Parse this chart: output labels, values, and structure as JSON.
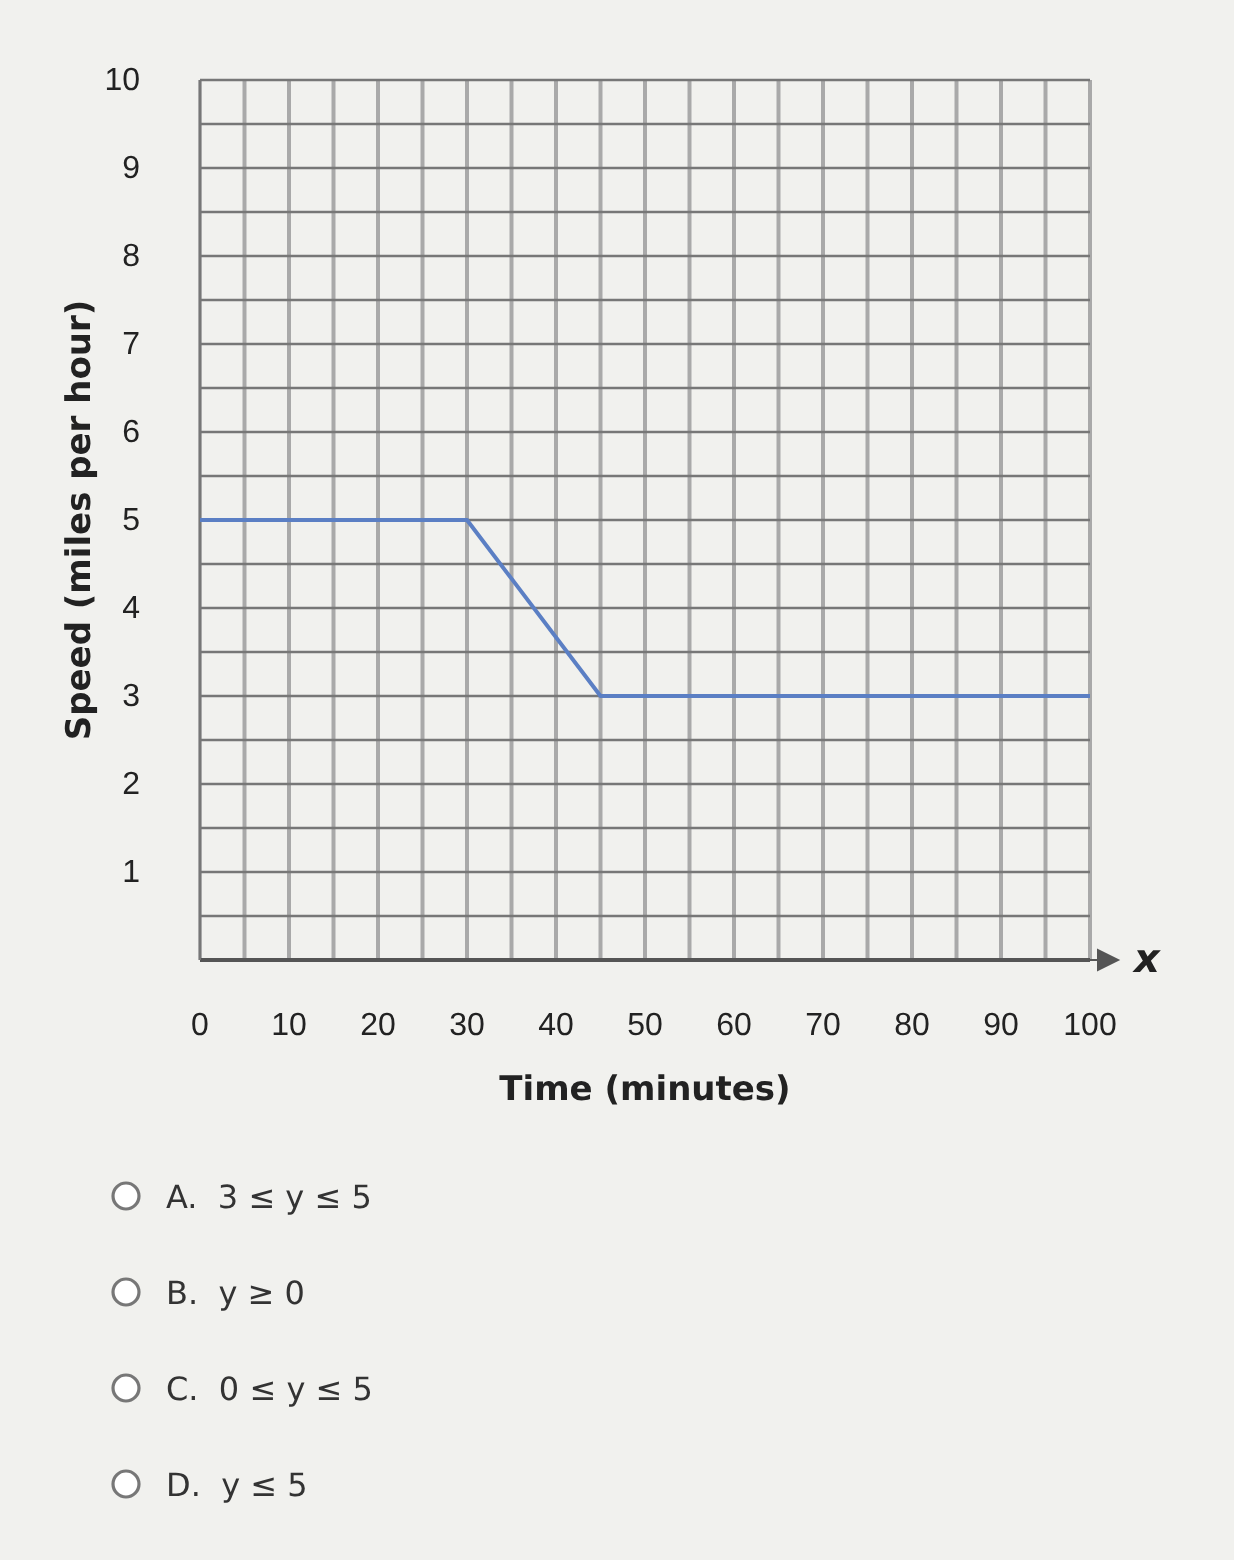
{
  "chart_data": {
    "type": "line",
    "xlabel": "Time (minutes)",
    "ylabel": "Speed (miles per hour)",
    "x": [
      0,
      30,
      45,
      100
    ],
    "series": [
      {
        "color": "#5b7fc4",
        "values": [
          5,
          5,
          3,
          3
        ]
      }
    ],
    "xlim": [
      0,
      100
    ],
    "ylim": [
      0,
      10
    ],
    "xticks": [
      0,
      {
        "value": 5,
        "label": null
      },
      10,
      {
        "value": 15,
        "label": null
      },
      20,
      {
        "value": 25,
        "label": null
      },
      30,
      {
        "value": 35,
        "label": null
      },
      40,
      {
        "value": 45,
        "label": null
      },
      50,
      {
        "value": 55,
        "label": null
      },
      60,
      {
        "value": 65,
        "label": null
      },
      70,
      {
        "value": 75,
        "label": null
      },
      80,
      {
        "value": 85,
        "label": null
      },
      90,
      {
        "value": 95,
        "label": null
      },
      100
    ],
    "yticks": [
      {
        "value": 0,
        "label": null
      },
      {
        "value": 0.5,
        "label": null
      },
      1,
      {
        "value": 1.5,
        "label": null
      },
      2,
      {
        "value": 2.5,
        "label": null
      },
      3,
      {
        "value": 3.5,
        "label": null
      },
      4,
      {
        "value": 4.5,
        "label": null
      },
      5,
      {
        "value": 5.5,
        "label": null
      },
      6,
      {
        "value": 6.5,
        "label": null
      },
      7,
      {
        "value": 7.5,
        "label": null
      },
      8,
      {
        "value": 8.5,
        "label": null
      },
      9,
      {
        "value": 9.5,
        "label": null
      },
      10
    ],
    "grid": true,
    "marker": "none",
    "line_style": "solid",
    "annotations": [
      "x",
      "A.  3 ≤ y ≤ 5",
      "B.  y ≥ 0",
      "C.  0 ≤ y ≤ 5",
      "D.  y ≤ 5"
    ]
  }
}
